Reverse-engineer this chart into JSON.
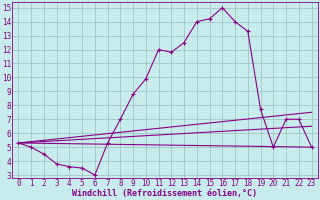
{
  "xlabel": "Windchill (Refroidissement éolien,°C)",
  "bg_color": "#c8ecec",
  "line_color": "#880088",
  "xlim": [
    -0.5,
    23.5
  ],
  "ylim": [
    2.8,
    15.4
  ],
  "xticks": [
    0,
    1,
    2,
    3,
    4,
    5,
    6,
    7,
    8,
    9,
    10,
    11,
    12,
    13,
    14,
    15,
    16,
    17,
    18,
    19,
    20,
    21,
    22,
    23
  ],
  "yticks": [
    3,
    4,
    5,
    6,
    7,
    8,
    9,
    10,
    11,
    12,
    13,
    14,
    15
  ],
  "series1_x": [
    0,
    1,
    2,
    3,
    4,
    5,
    6,
    7,
    8,
    9,
    10,
    11,
    12,
    13,
    14,
    15,
    16,
    17,
    18,
    19,
    20,
    21,
    22,
    23
  ],
  "series1_y": [
    5.3,
    5.0,
    4.5,
    3.8,
    3.6,
    3.5,
    3.0,
    5.3,
    7.0,
    8.8,
    9.9,
    12.0,
    11.8,
    12.5,
    14.0,
    14.2,
    15.0,
    14.0,
    13.3,
    7.7,
    5.0,
    7.0,
    7.0,
    5.0
  ],
  "series2_x": [
    0,
    23
  ],
  "series2_y": [
    5.3,
    5.0
  ],
  "series3_x": [
    0,
    23
  ],
  "series3_y": [
    5.3,
    7.5
  ],
  "series4_x": [
    0,
    23
  ],
  "series4_y": [
    5.3,
    6.5
  ],
  "grid_color": "#9bbfbf",
  "font_color": "#880088",
  "tick_fontsize": 5.5,
  "xlabel_fontsize": 6.0
}
